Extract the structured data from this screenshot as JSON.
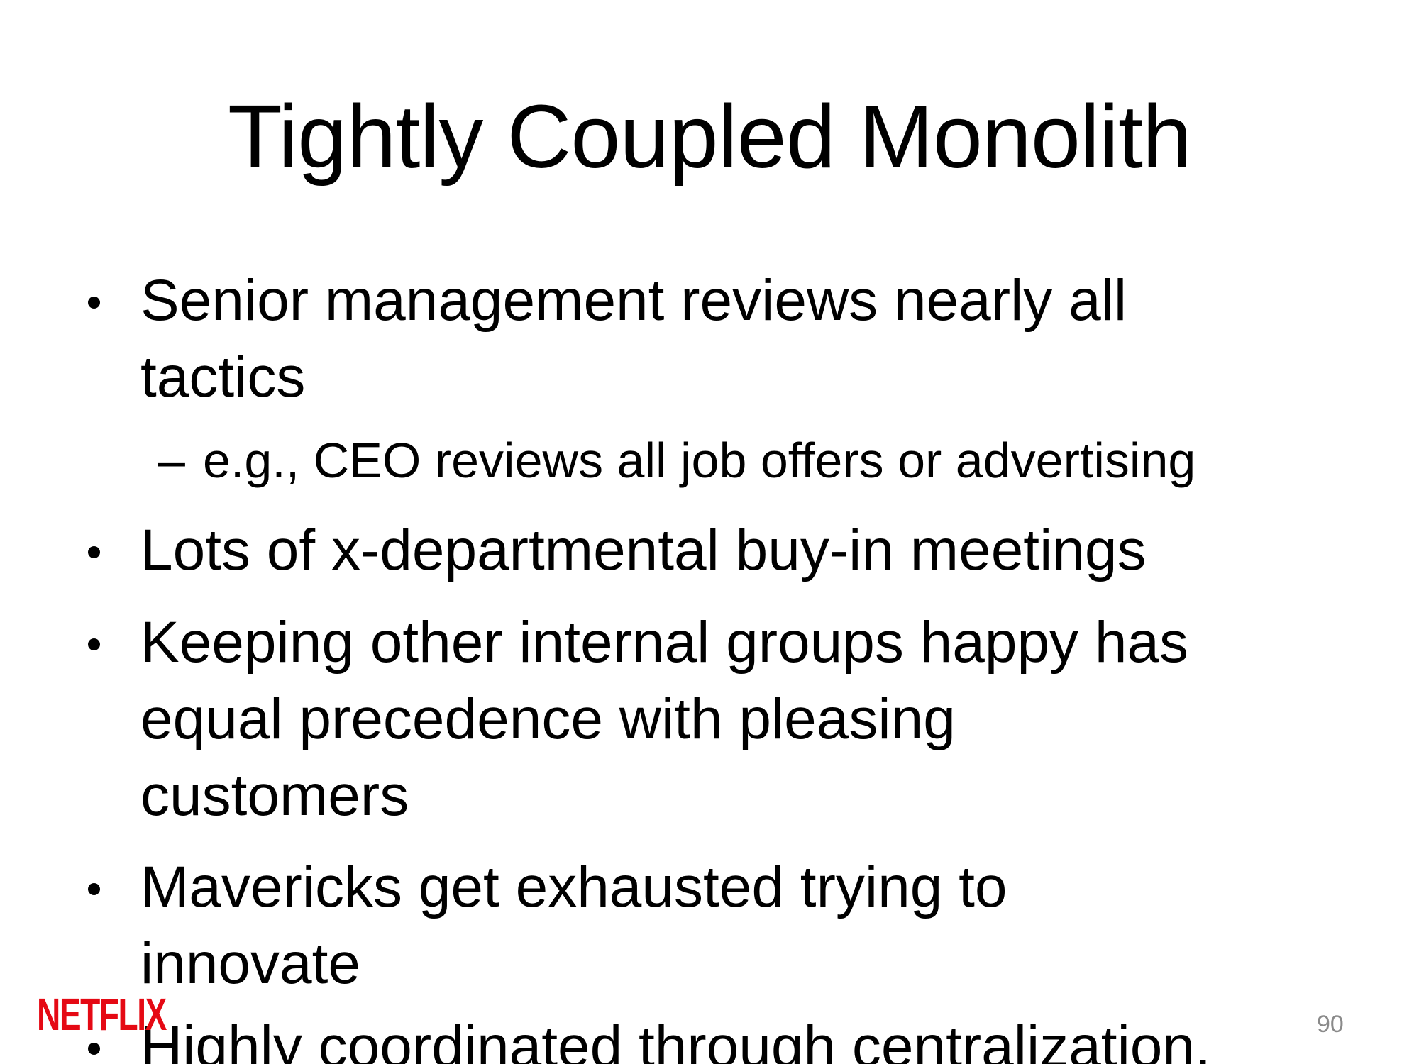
{
  "slide": {
    "title": "Tightly Coupled Monolith",
    "bullets": [
      {
        "text": "Senior management reviews nearly all tactics",
        "line1": "Senior management reviews nearly all",
        "line2": "tactics",
        "sub": {
          "marker": "–",
          "text": "e.g., CEO reviews all job offers or advertising"
        }
      },
      {
        "text": "Lots of x-departmental buy-in meetings"
      },
      {
        "text": "Keeping other internal groups happy has equal precedence with pleasing customers",
        "line1": "Keeping other internal groups happy has",
        "line2": "equal precedence with pleasing",
        "line3": "customers"
      },
      {
        "text": "Mavericks get exhausted trying to innovate",
        "line1": "Mavericks get exhausted trying to",
        "line2": "innovate"
      },
      {
        "text": "Highly coordinated through centralization,"
      }
    ],
    "logo_text": "NETFLIX",
    "page_number": "90"
  },
  "colors": {
    "background": "#ffffff",
    "text": "#000000",
    "logo": "#e50914",
    "page_number": "#8a8a8a"
  }
}
